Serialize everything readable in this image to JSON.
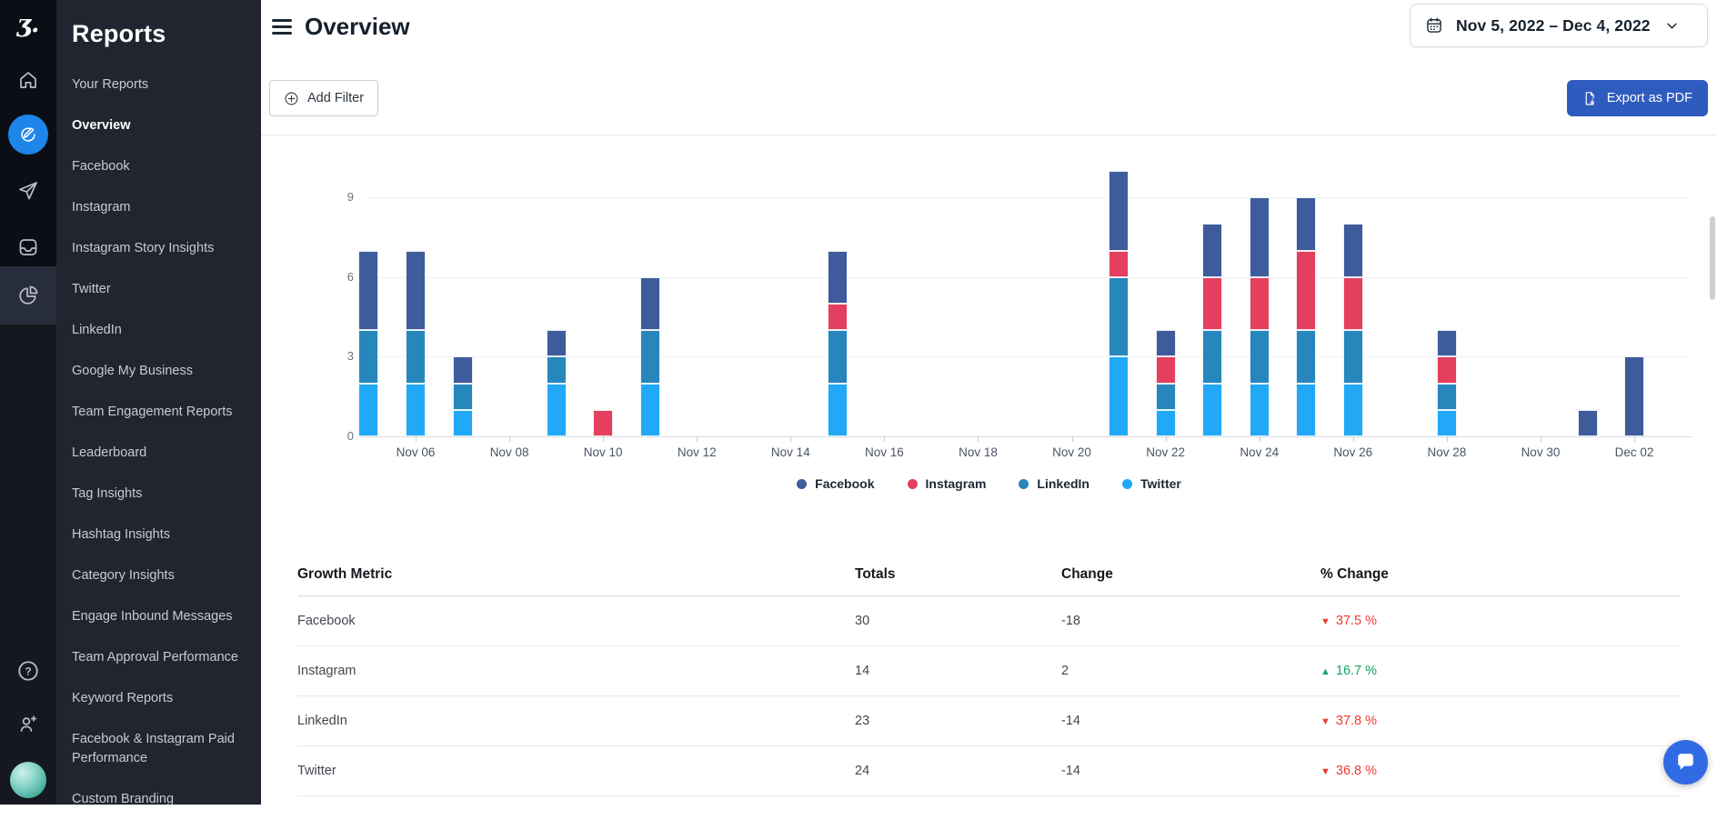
{
  "rail": {
    "logo_glyph": "ʒ.",
    "help_glyph": "?",
    "icons": [
      "logo",
      "home-icon",
      "compose-icon",
      "send-icon",
      "inbox-icon",
      "reports-pie-icon",
      "help-icon",
      "add-user-icon",
      "avatar"
    ]
  },
  "sidebar": {
    "title": "Reports",
    "items": [
      {
        "label": "Your Reports",
        "active": false
      },
      {
        "label": "Overview",
        "active": true
      },
      {
        "label": "Facebook",
        "active": false
      },
      {
        "label": "Instagram",
        "active": false
      },
      {
        "label": "Instagram Story Insights",
        "active": false
      },
      {
        "label": "Twitter",
        "active": false
      },
      {
        "label": "LinkedIn",
        "active": false
      },
      {
        "label": "Google My Business",
        "active": false
      },
      {
        "label": "Team Engagement Reports",
        "active": false
      },
      {
        "label": "Leaderboard",
        "active": false
      },
      {
        "label": "Tag Insights",
        "active": false
      },
      {
        "label": "Hashtag Insights",
        "active": false
      },
      {
        "label": "Category Insights",
        "active": false
      },
      {
        "label": "Engage Inbound Messages",
        "active": false
      },
      {
        "label": "Team Approval Performance",
        "active": false
      },
      {
        "label": "Keyword Reports",
        "active": false
      },
      {
        "label": "Facebook & Instagram Paid Performance",
        "active": false
      },
      {
        "label": "Custom Branding",
        "active": false
      }
    ]
  },
  "header": {
    "title": "Overview",
    "date_range": "Nov 5, 2022 – Dec 4, 2022"
  },
  "toolbar": {
    "add_filter_label": "Add Filter",
    "export_pdf_label": "Export as PDF",
    "export_button_color": "#2e5bbe"
  },
  "chart_data": {
    "type": "bar",
    "stacked": true,
    "title": "",
    "xlabel": "",
    "ylabel": "",
    "ylim": [
      0,
      10
    ],
    "yticks": [
      0,
      3,
      6,
      9
    ],
    "grid": true,
    "legend_position": "bottom-center",
    "categories": [
      "Nov 05",
      "Nov 06",
      "Nov 07",
      "Nov 08",
      "Nov 09",
      "Nov 10",
      "Nov 11",
      "Nov 12",
      "Nov 13",
      "Nov 14",
      "Nov 15",
      "Nov 16",
      "Nov 17",
      "Nov 18",
      "Nov 19",
      "Nov 20",
      "Nov 21",
      "Nov 22",
      "Nov 23",
      "Nov 24",
      "Nov 25",
      "Nov 26",
      "Nov 27",
      "Nov 28",
      "Nov 29",
      "Nov 30",
      "Dec 01",
      "Dec 02",
      "Dec 03",
      "Dec 04"
    ],
    "xtick_labels": [
      "Nov 06",
      "Nov 08",
      "Nov 10",
      "Nov 12",
      "Nov 14",
      "Nov 16",
      "Nov 18",
      "Nov 20",
      "Nov 22",
      "Nov 24",
      "Nov 26",
      "Nov 28",
      "Nov 30",
      "Dec 02"
    ],
    "stack_order_bottom_to_top": [
      "Twitter",
      "LinkedIn",
      "Instagram",
      "Facebook"
    ],
    "series": [
      {
        "name": "Facebook",
        "color": "#3e5c9b",
        "values": [
          3,
          3,
          1,
          0,
          1,
          0,
          2,
          0,
          0,
          0,
          2,
          0,
          0,
          0,
          0,
          0,
          3,
          1,
          2,
          3,
          2,
          2,
          0,
          1,
          0,
          0,
          1,
          3,
          0,
          0
        ]
      },
      {
        "name": "Instagram",
        "color": "#e43f5f",
        "values": [
          0,
          0,
          0,
          0,
          0,
          1,
          0,
          0,
          0,
          0,
          1,
          0,
          0,
          0,
          0,
          0,
          1,
          1,
          2,
          2,
          3,
          2,
          0,
          1,
          0,
          0,
          0,
          0,
          0,
          0
        ]
      },
      {
        "name": "LinkedIn",
        "color": "#2787bd",
        "values": [
          2,
          2,
          1,
          0,
          1,
          0,
          2,
          0,
          0,
          0,
          2,
          0,
          0,
          0,
          0,
          0,
          3,
          1,
          2,
          2,
          2,
          2,
          0,
          1,
          0,
          0,
          0,
          0,
          0,
          0
        ]
      },
      {
        "name": "Twitter",
        "color": "#21a9f7",
        "values": [
          2,
          2,
          1,
          0,
          2,
          0,
          2,
          0,
          0,
          0,
          2,
          0,
          0,
          0,
          0,
          0,
          3,
          1,
          2,
          2,
          2,
          2,
          0,
          1,
          0,
          0,
          0,
          0,
          0,
          0
        ]
      }
    ]
  },
  "table": {
    "headers": [
      "Growth Metric",
      "Totals",
      "Change",
      "% Change"
    ],
    "rows": [
      {
        "metric": "Facebook",
        "totals": "30",
        "change": "-18",
        "pct": "37.5 %",
        "direction": "down"
      },
      {
        "metric": "Instagram",
        "totals": "14",
        "change": "2",
        "pct": "16.7 %",
        "direction": "up"
      },
      {
        "metric": "LinkedIn",
        "totals": "23",
        "change": "-14",
        "pct": "37.8 %",
        "direction": "down"
      },
      {
        "metric": "Twitter",
        "totals": "24",
        "change": "-14",
        "pct": "36.8 %",
        "direction": "down"
      }
    ],
    "down_marker": "▼",
    "up_marker": "▲",
    "down_color": "#ee3b33",
    "up_color": "#0fa75f"
  }
}
